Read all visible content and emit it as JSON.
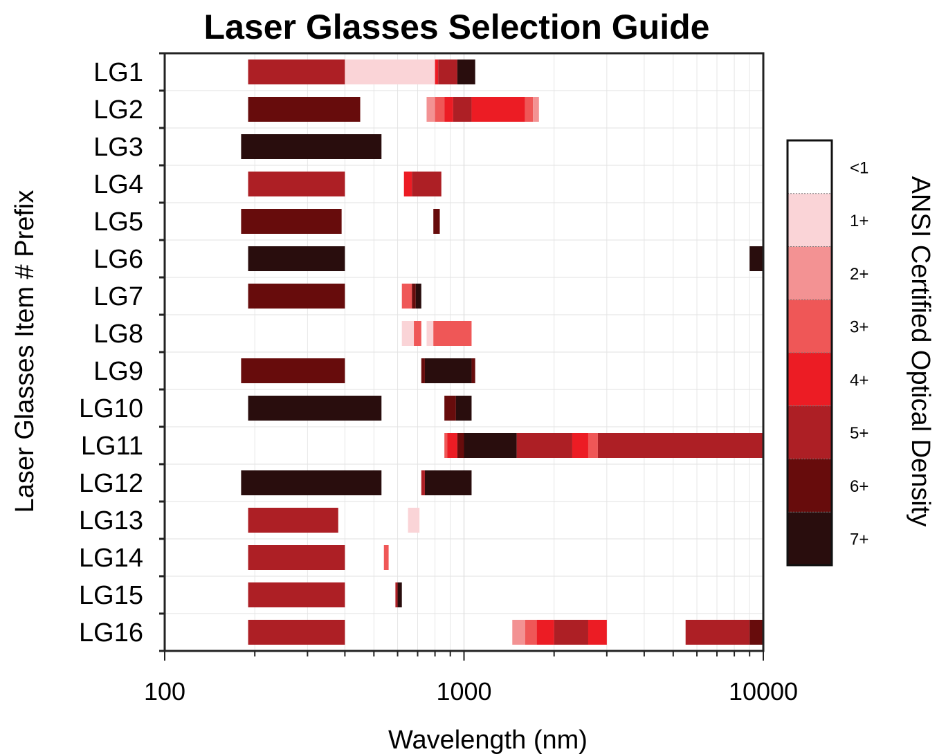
{
  "chart_data": {
    "type": "range_bar",
    "title": "Laser Glasses Selection Guide",
    "xlabel": "Wavelength (nm)",
    "ylabel": "Laser Glasses Item # Prefix",
    "x_scale": "log",
    "xlim": [
      100,
      10000
    ],
    "x_ticks": [
      "100",
      "1000",
      "10000"
    ],
    "grid": true,
    "legend": {
      "title": "ANSI Certified Optical Density",
      "placement": "right",
      "levels": [
        "<1",
        "1+",
        "2+",
        "3+",
        "4+",
        "5+",
        "6+",
        "7+"
      ],
      "colors": [
        "#ffffff",
        "#fad4d7",
        "#f39293",
        "#ef5757",
        "#ec1c24",
        "#ad1f25",
        "#670c0c",
        "#290d0d"
      ]
    },
    "categories": [
      "LG1",
      "LG2",
      "LG3",
      "LG4",
      "LG5",
      "LG6",
      "LG7",
      "LG8",
      "LG9",
      "LG10",
      "LG11",
      "LG12",
      "LG13",
      "LG14",
      "LG15",
      "LG16"
    ],
    "segments": [
      [
        [
          190,
          400,
          "5+"
        ],
        [
          400,
          800,
          "1+"
        ],
        [
          800,
          820,
          "4+"
        ],
        [
          820,
          950,
          "5+"
        ],
        [
          950,
          1090,
          "7+"
        ]
      ],
      [
        [
          190,
          450,
          "6+"
        ],
        [
          750,
          800,
          "2+"
        ],
        [
          800,
          860,
          "3+"
        ],
        [
          860,
          920,
          "4+"
        ],
        [
          920,
          1060,
          "5+"
        ],
        [
          1060,
          1600,
          "4+"
        ],
        [
          1600,
          1700,
          "3+"
        ],
        [
          1700,
          1780,
          "2+"
        ]
      ],
      [
        [
          180,
          530,
          "7+"
        ]
      ],
      [
        [
          190,
          400,
          "5+"
        ],
        [
          630,
          670,
          "4+"
        ],
        [
          670,
          840,
          "5+"
        ]
      ],
      [
        [
          180,
          390,
          "6+"
        ],
        [
          790,
          830,
          "6+"
        ]
      ],
      [
        [
          190,
          400,
          "7+"
        ],
        [
          9000,
          10000,
          "7+"
        ]
      ],
      [
        [
          190,
          400,
          "6+"
        ],
        [
          620,
          670,
          "3+"
        ],
        [
          670,
          690,
          "6+"
        ],
        [
          690,
          720,
          "7+"
        ]
      ],
      [
        [
          620,
          680,
          "1+"
        ],
        [
          680,
          720,
          "3+"
        ],
        [
          750,
          790,
          "1+"
        ],
        [
          790,
          1060,
          "3+"
        ]
      ],
      [
        [
          180,
          400,
          "6+"
        ],
        [
          720,
          740,
          "6+"
        ],
        [
          740,
          1060,
          "7+"
        ],
        [
          1060,
          1090,
          "6+"
        ]
      ],
      [
        [
          190,
          530,
          "7+"
        ],
        [
          860,
          940,
          "6+"
        ],
        [
          940,
          1060,
          "7+"
        ]
      ],
      [
        [
          860,
          880,
          "3+"
        ],
        [
          880,
          950,
          "4+"
        ],
        [
          950,
          1000,
          "6+"
        ],
        [
          1000,
          1500,
          "7+"
        ],
        [
          1500,
          2300,
          "5+"
        ],
        [
          2300,
          2600,
          "4+"
        ],
        [
          2600,
          2800,
          "3+"
        ],
        [
          2800,
          10000,
          "5+"
        ]
      ],
      [
        [
          180,
          530,
          "7+"
        ],
        [
          720,
          740,
          "5+"
        ],
        [
          740,
          1060,
          "7+"
        ]
      ],
      [
        [
          190,
          380,
          "5+"
        ],
        [
          650,
          710,
          "1+"
        ]
      ],
      [
        [
          190,
          400,
          "5+"
        ],
        [
          540,
          560,
          "3+"
        ]
      ],
      [
        [
          190,
          400,
          "5+"
        ],
        [
          590,
          600,
          "5+"
        ],
        [
          600,
          620,
          "7+"
        ]
      ],
      [
        [
          190,
          400,
          "5+"
        ],
        [
          1450,
          1600,
          "2+"
        ],
        [
          1600,
          1750,
          "3+"
        ],
        [
          1750,
          2000,
          "4+"
        ],
        [
          2000,
          2600,
          "5+"
        ],
        [
          2600,
          3000,
          "4+"
        ],
        [
          5500,
          9000,
          "5+"
        ],
        [
          9000,
          10000,
          "6+"
        ]
      ]
    ]
  }
}
